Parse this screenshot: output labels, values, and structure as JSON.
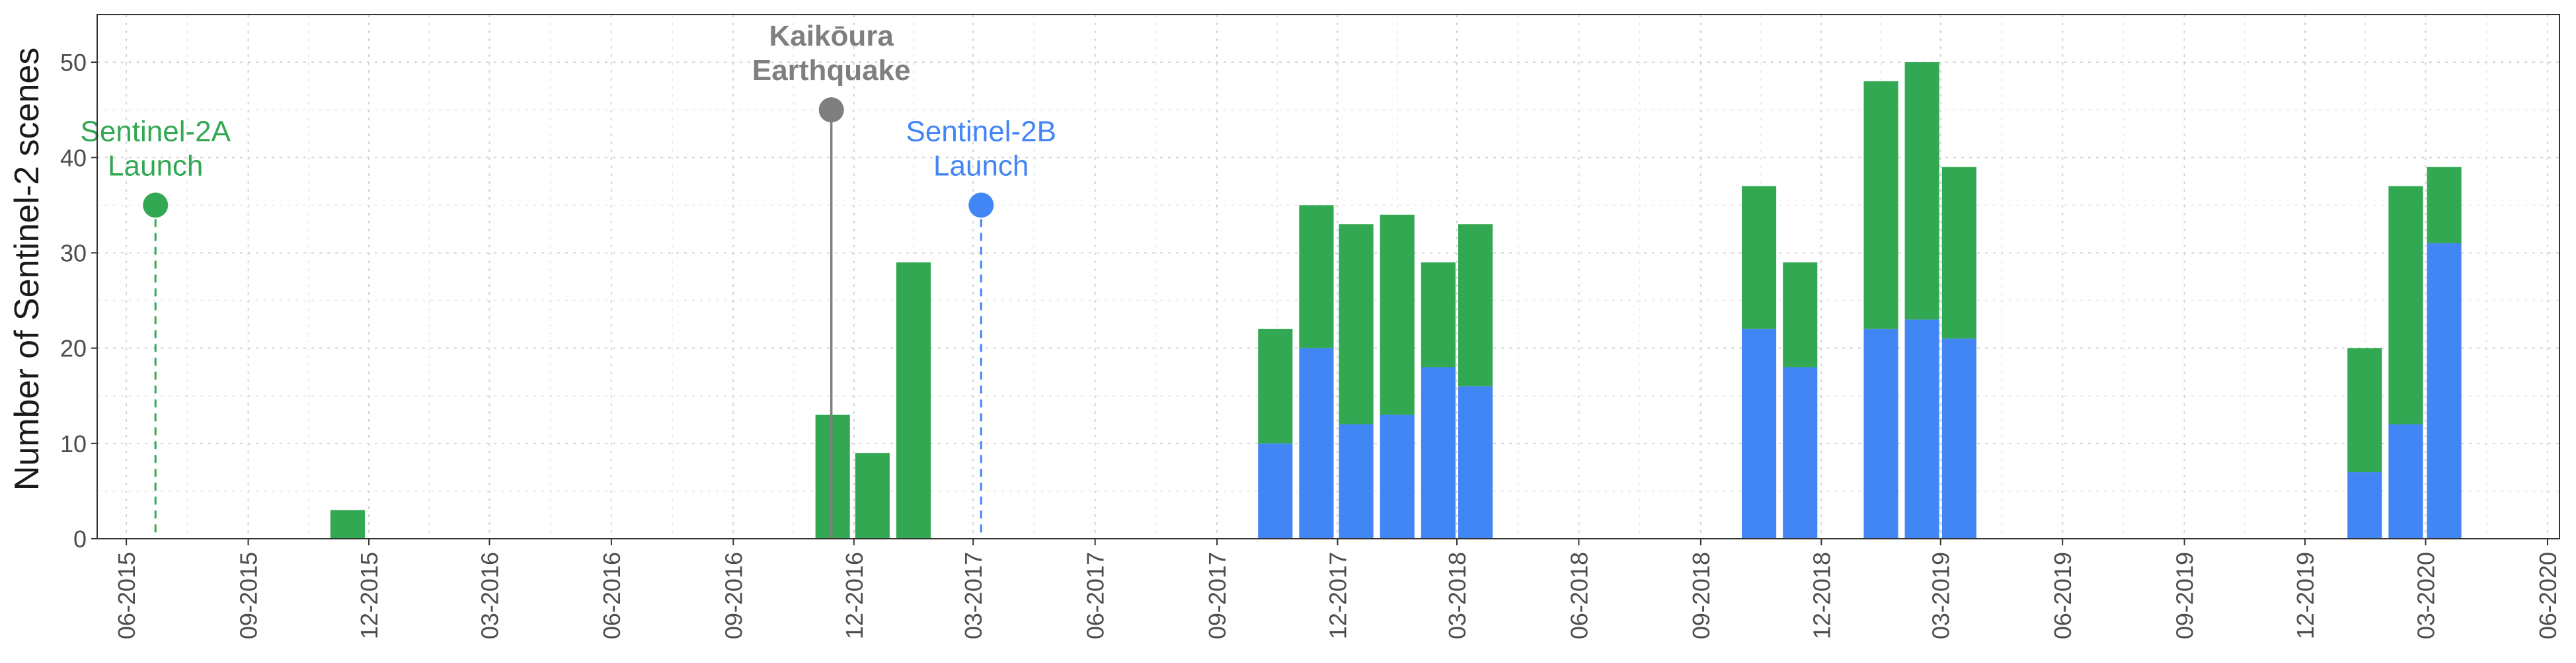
{
  "chart_data": {
    "type": "bar",
    "stacked": true,
    "title": "",
    "xlabel": "",
    "ylabel": "Number of Sentinel-2 scenes",
    "ylim": [
      0,
      55
    ],
    "yticks": [
      0,
      10,
      20,
      30,
      40,
      50
    ],
    "xlim": [
      "2015-05-10",
      "2020-06-10"
    ],
    "xticks": [
      {
        "date": "2015-06-01",
        "label": "06-2015"
      },
      {
        "date": "2015-09-01",
        "label": "09-2015"
      },
      {
        "date": "2015-12-01",
        "label": "12-2015"
      },
      {
        "date": "2016-03-01",
        "label": "03-2016"
      },
      {
        "date": "2016-06-01",
        "label": "06-2016"
      },
      {
        "date": "2016-09-01",
        "label": "09-2016"
      },
      {
        "date": "2016-12-01",
        "label": "12-2016"
      },
      {
        "date": "2017-03-01",
        "label": "03-2017"
      },
      {
        "date": "2017-06-01",
        "label": "06-2017"
      },
      {
        "date": "2017-09-01",
        "label": "09-2017"
      },
      {
        "date": "2017-12-01",
        "label": "12-2017"
      },
      {
        "date": "2018-03-01",
        "label": "03-2018"
      },
      {
        "date": "2018-06-01",
        "label": "06-2018"
      },
      {
        "date": "2018-09-01",
        "label": "09-2018"
      },
      {
        "date": "2018-12-01",
        "label": "12-2018"
      },
      {
        "date": "2019-03-01",
        "label": "03-2019"
      },
      {
        "date": "2019-06-01",
        "label": "06-2019"
      },
      {
        "date": "2019-09-01",
        "label": "09-2019"
      },
      {
        "date": "2019-12-01",
        "label": "12-2019"
      },
      {
        "date": "2020-03-01",
        "label": "03-2020"
      },
      {
        "date": "2020-06-01",
        "label": "06-2020"
      }
    ],
    "grid": true,
    "legend": "none",
    "colors": {
      "green": "#33a853",
      "blue": "#4285f4",
      "grey": "#7f7f7f"
    },
    "x": [
      "2015-11-15",
      "2016-11-15",
      "2016-12-15",
      "2017-01-15",
      "2017-10-15",
      "2017-11-15",
      "2017-12-15",
      "2018-01-15",
      "2018-02-15",
      "2018-03-15",
      "2018-10-15",
      "2018-11-15",
      "2019-01-15",
      "2019-02-15",
      "2019-03-15",
      "2020-01-15",
      "2020-02-15",
      "2020-03-15"
    ],
    "series": [
      {
        "color": "#4285f4",
        "values": [
          0,
          0,
          0,
          0,
          10,
          20,
          12,
          13,
          18,
          16,
          22,
          18,
          22,
          23,
          21,
          7,
          12,
          31
        ]
      },
      {
        "color": "#33a853",
        "values": [
          3,
          13,
          9,
          29,
          12,
          15,
          21,
          21,
          11,
          17,
          15,
          11,
          26,
          27,
          18,
          13,
          25,
          8
        ]
      }
    ],
    "annotations": [
      {
        "lines": [
          "Sentinel-2A",
          "Launch"
        ],
        "date": "2015-06-23",
        "y": 35,
        "color": "#33a853",
        "dashed": true,
        "bold": false
      },
      {
        "lines": [
          "Kaikōura",
          "Earthquake"
        ],
        "date": "2016-11-14",
        "y": 45,
        "color": "#7f7f7f",
        "dashed": false,
        "bold": true
      },
      {
        "lines": [
          "Sentinel-2B",
          "Launch"
        ],
        "date": "2017-03-07",
        "y": 35,
        "color": "#4285f4",
        "dashed": true,
        "bold": false
      }
    ]
  }
}
